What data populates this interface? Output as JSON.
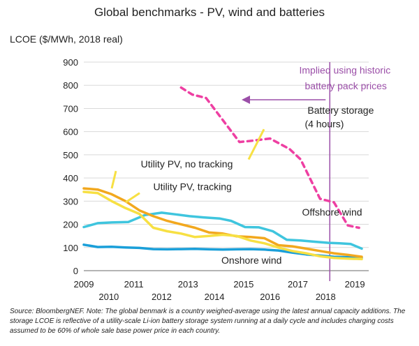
{
  "chart_data": {
    "type": "line",
    "title": "Global benchmarks - PV, wind and batteries",
    "ylabel": "LCOE ($/MWh, 2018 real)",
    "ylim": [
      0,
      900
    ],
    "yticks": [
      0,
      100,
      200,
      300,
      400,
      500,
      600,
      700,
      800,
      900
    ],
    "xlim": [
      2009,
      2019.25
    ],
    "xticks": [
      {
        "label": "2009",
        "x": 2009,
        "row": "low"
      },
      {
        "label": "2010",
        "x": 2009.9,
        "row": "high"
      },
      {
        "label": "2011",
        "x": 2010.8,
        "row": "low"
      },
      {
        "label": "2012",
        "x": 2011.8,
        "row": "high"
      },
      {
        "label": "2013",
        "x": 2012.75,
        "row": "low"
      },
      {
        "label": "2014",
        "x": 2013.7,
        "row": "high"
      },
      {
        "label": "2015",
        "x": 2014.75,
        "row": "low"
      },
      {
        "label": "2016",
        "x": 2015.7,
        "row": "high"
      },
      {
        "label": "2017",
        "x": 2016.7,
        "row": "low"
      },
      {
        "label": "2018",
        "x": 2017.7,
        "row": "high"
      },
      {
        "label": "2019",
        "x": 2018.75,
        "row": "low"
      }
    ],
    "grid": true,
    "series": [
      {
        "name": "Battery storage (4 hours)",
        "color": "#ee3fa2",
        "dash": true,
        "x": [
          2012.5,
          2012.9,
          2013.4,
          2014.0,
          2014.6,
          2015.0,
          2015.7,
          2016.4,
          2016.8,
          2017.5,
          2018.0,
          2018.5,
          2018.9
        ],
        "y": [
          790,
          760,
          745,
          650,
          555,
          560,
          570,
          525,
          480,
          310,
          295,
          195,
          185
        ]
      },
      {
        "name": "Offshore wind",
        "color": "#3fc5de",
        "x": [
          2009.0,
          2009.5,
          2010.0,
          2010.6,
          2011.2,
          2011.8,
          2012.3,
          2012.8,
          2013.3,
          2013.9,
          2014.3,
          2014.8,
          2015.3,
          2015.8,
          2016.3,
          2016.8,
          2017.3,
          2017.8,
          2018.2,
          2018.6,
          2019.0
        ],
        "y": [
          188,
          205,
          208,
          210,
          240,
          250,
          243,
          235,
          230,
          225,
          215,
          188,
          187,
          170,
          133,
          130,
          125,
          120,
          118,
          115,
          95
        ]
      },
      {
        "name": "Onshore wind",
        "color": "#1a9fd9",
        "x": [
          2009.0,
          2009.5,
          2010.0,
          2010.5,
          2011.0,
          2011.5,
          2012.0,
          2012.5,
          2013.0,
          2013.5,
          2014.0,
          2014.5,
          2015.0,
          2015.5,
          2016.0,
          2016.5,
          2017.0,
          2017.5,
          2018.0,
          2018.5,
          2019.0
        ],
        "y": [
          112,
          102,
          103,
          100,
          98,
          93,
          92,
          93,
          94,
          92,
          91,
          92,
          93,
          91,
          87,
          78,
          70,
          65,
          60,
          58,
          55
        ]
      },
      {
        "name": "Utility PV, no tracking",
        "color": "#f2a81e",
        "x": [
          2009.0,
          2009.5,
          2010.0,
          2010.5,
          2011.0,
          2011.5,
          2012.0,
          2012.5,
          2013.0,
          2013.5,
          2014.0,
          2014.5,
          2015.0,
          2015.5,
          2016.0,
          2016.5,
          2017.0,
          2017.5,
          2018.0,
          2018.5,
          2019.0
        ],
        "y": [
          355,
          350,
          330,
          300,
          260,
          235,
          215,
          200,
          185,
          165,
          160,
          148,
          145,
          140,
          110,
          105,
          95,
          85,
          75,
          68,
          60
        ]
      },
      {
        "name": "Utility PV, tracking",
        "color": "#f7e043",
        "x": [
          2009.0,
          2009.5,
          2010.0,
          2010.5,
          2011.0,
          2011.5,
          2012.0,
          2012.5,
          2013.0,
          2013.5,
          2014.0,
          2014.5,
          2015.0,
          2015.5,
          2016.0,
          2016.5,
          2017.0,
          2017.5,
          2018.0,
          2018.5,
          2019.0
        ],
        "y": [
          340,
          335,
          300,
          270,
          245,
          185,
          170,
          160,
          145,
          150,
          155,
          150,
          130,
          118,
          100,
          85,
          75,
          62,
          55,
          52,
          50
        ]
      }
    ],
    "annotations": [
      {
        "text": "Battery storage",
        "x": 2017.05,
        "y": 678,
        "color": "#222222"
      },
      {
        "text": "(4 hours)",
        "x": 2016.95,
        "y": 618,
        "color": "#222222"
      },
      {
        "text": "Utility PV, no tracking",
        "x": 2011.05,
        "y": 445,
        "color": "#222222"
      },
      {
        "text": "Utility PV, tracking",
        "x": 2011.5,
        "y": 348,
        "color": "#222222"
      },
      {
        "text": "Offshore wind",
        "x": 2016.85,
        "y": 238,
        "color": "#222222"
      },
      {
        "text": "Onshore wind",
        "x": 2013.95,
        "y": 30,
        "color": "#222222"
      },
      {
        "text": "Implied using historic",
        "x": 2016.75,
        "y": 850,
        "color": "#9b4fa8"
      },
      {
        "text": "battery pack prices",
        "x": 2016.95,
        "y": 783,
        "color": "#9b4fa8"
      }
    ],
    "divider": {
      "x": 2017.85,
      "color": "#9b4fa8"
    }
  },
  "footnote": "Source: BloombergNEF. Note: The global benmark is a country weighed-average using the latest annual capacity additions. The storage LCOE is reflective of a utility-scale Li-ion battery storage system running at a daily cycle and includes charging costs assumed to be 60% of whole sale base power price in each country."
}
